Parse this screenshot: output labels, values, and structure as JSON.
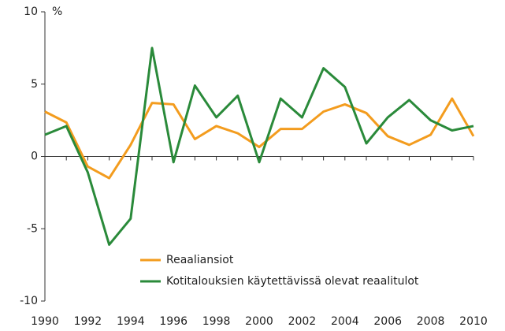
{
  "chart_data": {
    "type": "line",
    "y_unit": "%",
    "x": [
      1990,
      1991,
      1992,
      1993,
      1994,
      1995,
      1996,
      1997,
      1998,
      1999,
      2000,
      2001,
      2002,
      2003,
      2004,
      2005,
      2006,
      2007,
      2008,
      2009,
      2010
    ],
    "series": [
      {
        "name": "Reaaliansiot",
        "color": "#f39c1e",
        "values": [
          3.1,
          2.35,
          -0.7,
          -1.5,
          0.8,
          3.7,
          3.6,
          1.2,
          2.1,
          1.6,
          0.65,
          1.9,
          1.9,
          3.1,
          3.6,
          3.0,
          1.4,
          0.8,
          1.5,
          4.0,
          1.4
        ]
      },
      {
        "name": "Kotitalouksien käytettävissä olevat reaalitulot",
        "color": "#2a8a3a",
        "values": [
          1.5,
          2.1,
          -1.1,
          -6.1,
          -4.3,
          7.5,
          -0.4,
          4.9,
          2.7,
          4.2,
          -0.4,
          4.0,
          2.7,
          6.1,
          4.8,
          0.9,
          2.7,
          3.9,
          2.5,
          1.8,
          2.1
        ]
      }
    ],
    "xlim": [
      1990,
      2010
    ],
    "xticks": [
      1990,
      1992,
      1994,
      1996,
      1998,
      2000,
      2002,
      2004,
      2006,
      2008,
      2010
    ],
    "ylim": [
      -10,
      10
    ],
    "yticks": [
      -10,
      -5,
      0,
      5,
      10
    ],
    "legend": "lower center"
  }
}
